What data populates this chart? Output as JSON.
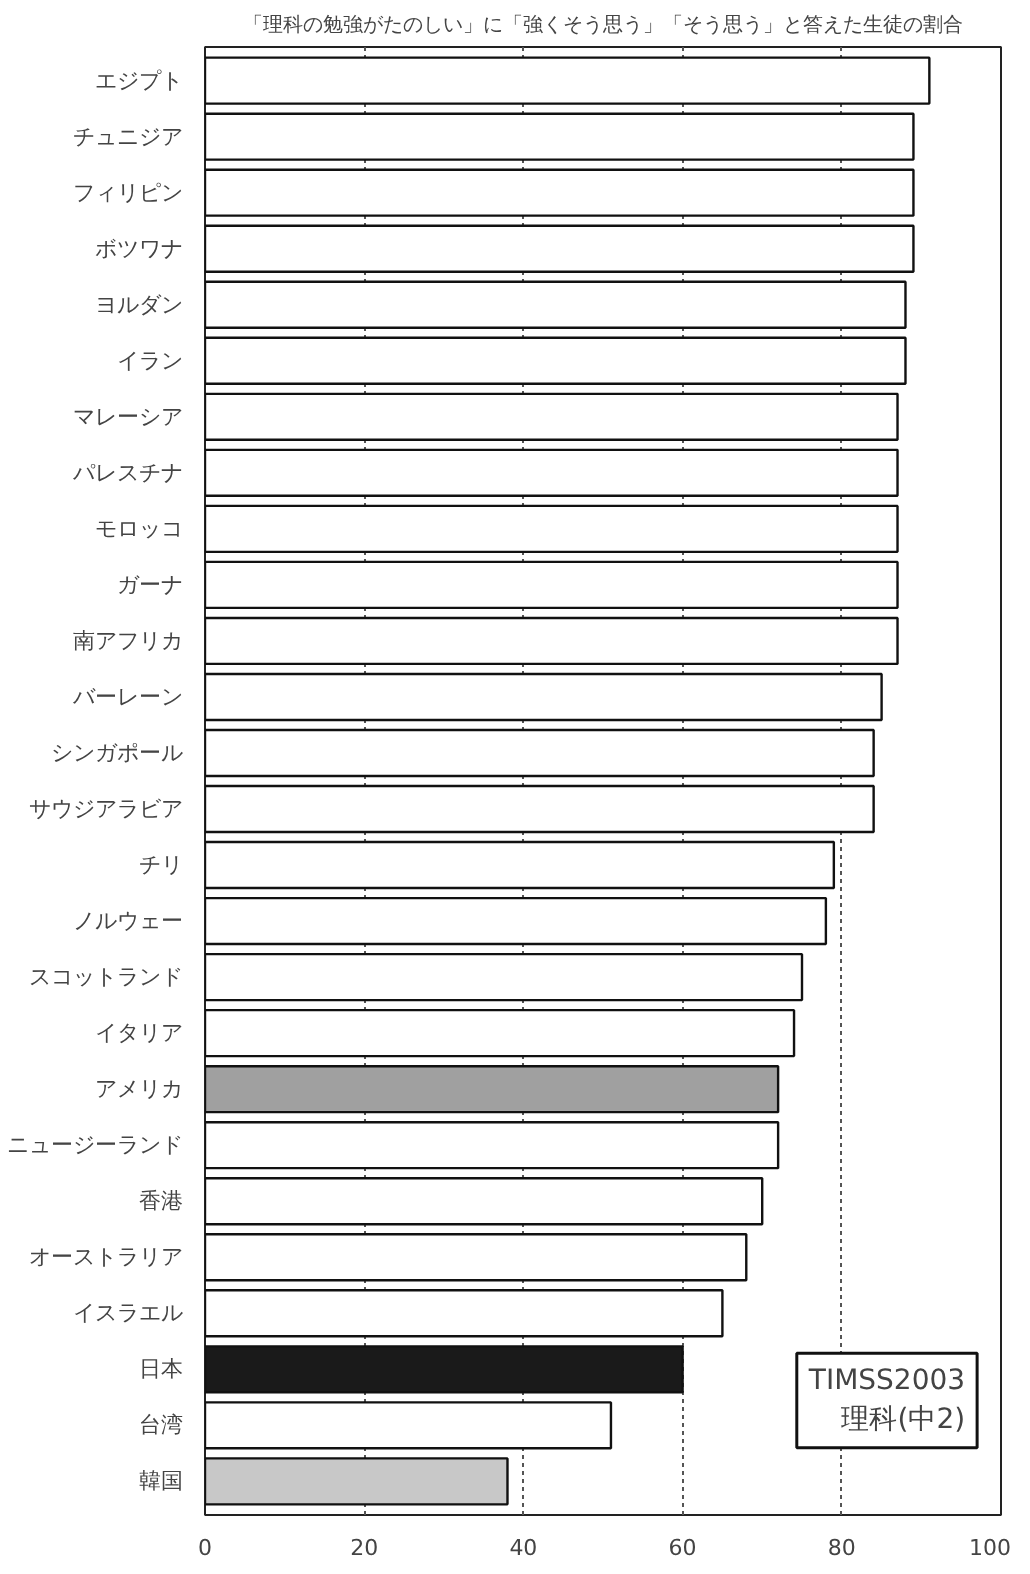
{
  "chart_data": {
    "type": "bar",
    "orientation": "horizontal",
    "title": "「理科の勉強がたのしい」に「強くそう思う」「そう思う」と答えた生徒の割合",
    "categories": [
      "エジプト",
      "チュニジア",
      "フィリピン",
      "ボツワナ",
      "ヨルダン",
      "イラン",
      "マレーシア",
      "パレスチナ",
      "モロッコ",
      "ガーナ",
      "南アフリカ",
      "バーレーン",
      "シンガポール",
      "サウジアラビア",
      "チリ",
      "ノルウェー",
      "スコットランド",
      "イタリア",
      "アメリカ",
      "ニュージーランド",
      "香港",
      "オーストラリア",
      "イスラエル",
      "日本",
      "台湾",
      "韓国"
    ],
    "values": [
      91,
      89,
      89,
      89,
      88,
      88,
      87,
      87,
      87,
      87,
      87,
      85,
      84,
      84,
      79,
      78,
      75,
      74,
      72,
      72,
      70,
      68,
      65,
      60,
      51,
      38
    ],
    "colors": [
      "#ffffff",
      "#ffffff",
      "#ffffff",
      "#ffffff",
      "#ffffff",
      "#ffffff",
      "#ffffff",
      "#ffffff",
      "#ffffff",
      "#ffffff",
      "#ffffff",
      "#ffffff",
      "#ffffff",
      "#ffffff",
      "#ffffff",
      "#ffffff",
      "#ffffff",
      "#ffffff",
      "#a0a0a0",
      "#ffffff",
      "#ffffff",
      "#ffffff",
      "#ffffff",
      "#1a1a1a",
      "#ffffff",
      "#c8c8c8"
    ],
    "xlim": [
      0,
      100
    ],
    "xticks": [
      0,
      20,
      40,
      60,
      80,
      100
    ],
    "grid": "x",
    "annotations": [
      "TIMSS2003\n理科(中2)"
    ]
  }
}
